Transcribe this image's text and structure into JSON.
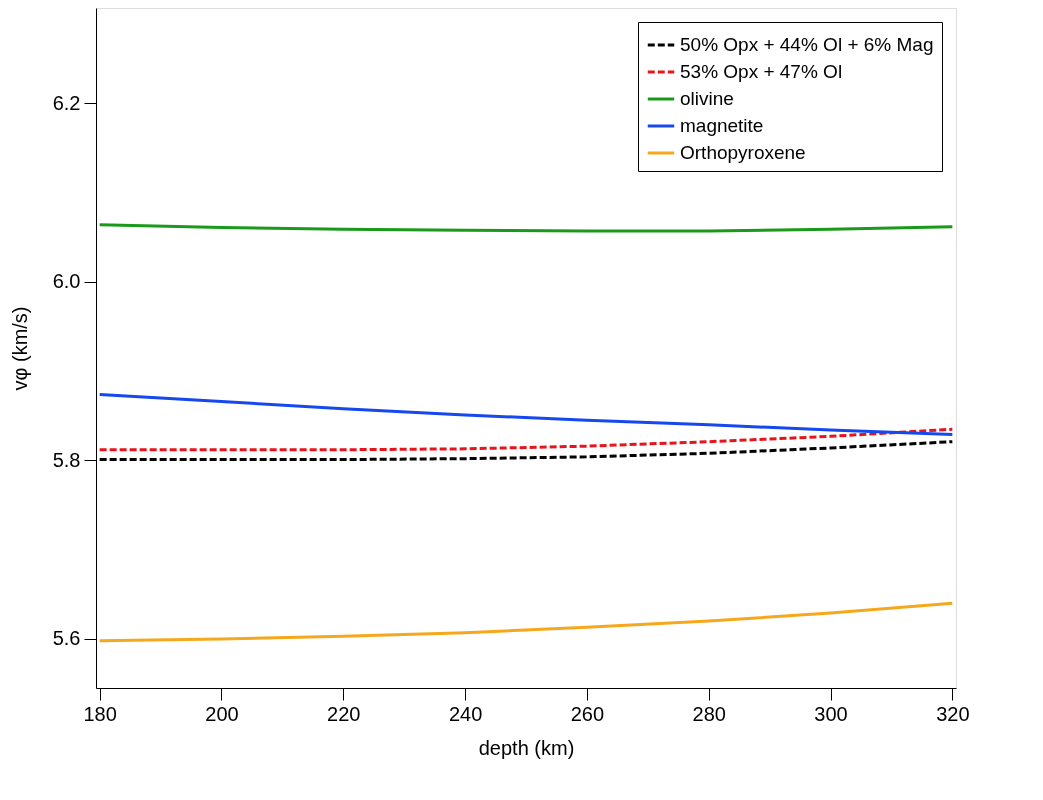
{
  "chart_data": {
    "type": "line",
    "xlabel": "depth (km)",
    "ylabel": "vφ (km/s)",
    "x": [
      180,
      200,
      220,
      240,
      260,
      280,
      300,
      320
    ],
    "series": [
      {
        "name": "50% Opx + 44% Ol + 6% Mag",
        "color": "#000000",
        "line_style": "dashed",
        "values": [
          5.801,
          5.801,
          5.801,
          5.802,
          5.804,
          5.808,
          5.814,
          5.821
        ]
      },
      {
        "name": "53% Opx + 47% Ol",
        "color": "#e8141b",
        "line_style": "dashed",
        "values": [
          5.812,
          5.812,
          5.812,
          5.813,
          5.816,
          5.821,
          5.827,
          5.835
        ]
      },
      {
        "name": "olivine",
        "color": "#1a9a1a",
        "line_style": "solid",
        "values": [
          6.064,
          6.061,
          6.059,
          6.058,
          6.057,
          6.057,
          6.059,
          6.062
        ]
      },
      {
        "name": "magnetite",
        "color": "#1648f0",
        "line_style": "solid",
        "values": [
          5.874,
          5.866,
          5.858,
          5.851,
          5.845,
          5.84,
          5.834,
          5.829
        ]
      },
      {
        "name": "Orthopyroxene",
        "color": "#f5a81c",
        "line_style": "solid",
        "values": [
          5.598,
          5.6,
          5.603,
          5.607,
          5.613,
          5.62,
          5.629,
          5.64
        ]
      }
    ],
    "xlim": [
      179.4,
      320.6
    ],
    "ylim": [
      5.545,
      6.307
    ],
    "xticks": [
      180,
      200,
      220,
      240,
      260,
      280,
      300,
      320
    ],
    "yticks": [
      {
        "value": 5.6,
        "label": "5.6"
      },
      {
        "value": 5.8,
        "label": "5.8"
      },
      {
        "value": 6.0,
        "label": "6.0"
      },
      {
        "value": 6.2,
        "label": "6.2"
      }
    ],
    "grid": false,
    "legend": "top right",
    "marker": "none"
  }
}
